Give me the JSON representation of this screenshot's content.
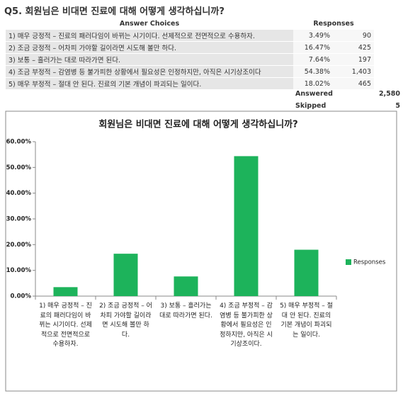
{
  "question": "Q5. 회원님은 비대면 진료에 대해 어떻게 생각하십니까?",
  "table": {
    "header": [
      "Answer Choices",
      "Responses"
    ],
    "rows": [
      [
        "1) 매우 긍정적 – 진료의 패러다임이 바뀌는 시기이다. 선제적으로 전면적으로 수용하자.",
        "3.49%",
        "90"
      ],
      [
        "2) 조금 긍정적 – 어차피 가야할 길이라면 시도해 볼만 하다.",
        "16.47%",
        "425"
      ],
      [
        "3) 보통 – 흘러가는 대로 따라가면 된다.",
        "7.64%",
        "197"
      ],
      [
        "4) 조금 부정적 – 감염병 등 불가피한 상황에서 필요성은 인정하지만, 아직은 시기상조이다",
        "54.38%",
        "1,403"
      ],
      [
        "5) 매우 부정적 – 절대 안 된다. 진료의 기본 개념이 파괴되는 일이다.",
        "18.02%",
        "465"
      ]
    ],
    "summary": [
      [
        "Answered",
        "2,580"
      ],
      [
        "Skipped",
        "5"
      ]
    ]
  },
  "chart_data": {
    "type": "bar",
    "title": "회원님은 비대면 진료에 대해 어떻게 생각하십니까?",
    "categories": [
      "1) 매우 긍정적 – 진료의 패러다임이 바뀌는 시기이다. 선제적으로 전면적으로 수용하자.",
      "2) 조금 긍정적 – 어차피 가야할 길이라면 시도해 볼만 하다.",
      "3) 보통 – 흘러가는 대로 따라가면 된다.",
      "4) 조금 부정적 – 감염병 등 불가피한 상황에서 필요성은 인정하지만, 아직은 시기상조이다.",
      "5) 매우 부정적 – 절대 안 된다. 진료의 기본 개념이 파괴되는 일이다."
    ],
    "series": [
      {
        "name": "Responses",
        "color": "#1db35b",
        "values": [
          3.49,
          16.47,
          7.64,
          54.38,
          18.02
        ]
      }
    ],
    "ylim": [
      0,
      60
    ],
    "yticks": [
      {
        "value": 0,
        "label": "0.00%"
      },
      {
        "value": 10,
        "label": "10.00%"
      },
      {
        "value": 20,
        "label": "20.00%"
      },
      {
        "value": 30,
        "label": "30.00%"
      },
      {
        "value": 40,
        "label": "40.00%"
      },
      {
        "value": 50,
        "label": "50.00%"
      },
      {
        "value": 60,
        "label": "60.00%"
      }
    ],
    "grid": false,
    "legend": "right"
  }
}
